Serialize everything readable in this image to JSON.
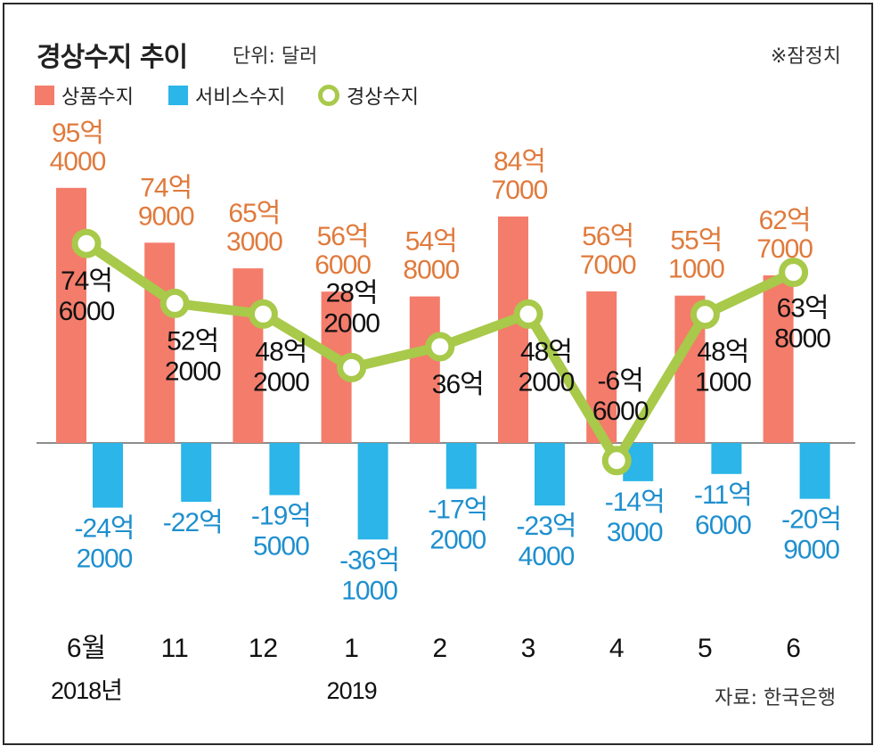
{
  "header": {
    "title": "경상수지 추이",
    "unit": "단위: 달러",
    "note": "※잠정치"
  },
  "legend": [
    {
      "label": "상품수지",
      "color": "#f47c6b"
    },
    {
      "label": "서비스수지",
      "color": "#2bb5e8"
    },
    {
      "label": "경상수지",
      "color": "#a8c94a"
    }
  ],
  "source": "자료: 한국은행",
  "chart_data": {
    "type": "bar",
    "title": "경상수지 추이",
    "unit": "단위: 달러",
    "categories": [
      "6월",
      "11",
      "12",
      "1",
      "2",
      "3",
      "4",
      "5",
      "6"
    ],
    "year_labels": [
      "2018년",
      "",
      "",
      "2019",
      "",
      "",
      "",
      "",
      ""
    ],
    "series": [
      {
        "name": "상품수지",
        "type": "bar",
        "color": "#f47c6b",
        "label_color": "#e07a3c",
        "values": [
          9540,
          7490,
          6530,
          5660,
          5480,
          8470,
          5670,
          5510,
          6270
        ],
        "labels": [
          [
            "95억",
            "4000"
          ],
          [
            "74억",
            "9000"
          ],
          [
            "65억",
            "3000"
          ],
          [
            "56억",
            "6000"
          ],
          [
            "54억",
            "8000"
          ],
          [
            "84억",
            "7000"
          ],
          [
            "56억",
            "7000"
          ],
          [
            "55억",
            "1000"
          ],
          [
            "62억",
            "7000"
          ]
        ]
      },
      {
        "name": "서비스수지",
        "type": "bar",
        "color": "#2bb5e8",
        "label_color": "#1e8fce",
        "values": [
          -2420,
          -2200,
          -1950,
          -3610,
          -1720,
          -2340,
          -1430,
          -1160,
          -2090
        ],
        "labels": [
          [
            "-24억",
            "2000"
          ],
          [
            "-22억"
          ],
          [
            "-19억",
            "5000"
          ],
          [
            "-36억",
            "1000"
          ],
          [
            "-17억",
            "2000"
          ],
          [
            "-23억",
            "4000"
          ],
          [
            "-14억",
            "3000"
          ],
          [
            "-11억",
            "6000"
          ],
          [
            "-20억",
            "9000"
          ]
        ]
      },
      {
        "name": "경상수지",
        "type": "line",
        "color": "#a8c94a",
        "label_color": "#111111",
        "values": [
          7460,
          5220,
          4820,
          2820,
          3600,
          4820,
          -660,
          4810,
          6380
        ],
        "labels": [
          [
            "74억",
            "6000"
          ],
          [
            "52억",
            "2000"
          ],
          [
            "48억",
            "2000"
          ],
          [
            "28억",
            "2000"
          ],
          [
            "36억"
          ],
          [
            "48억",
            "2000"
          ],
          [
            "-6억",
            "6000"
          ],
          [
            "48억",
            "1000"
          ],
          [
            "63억",
            "8000"
          ]
        ]
      }
    ]
  }
}
